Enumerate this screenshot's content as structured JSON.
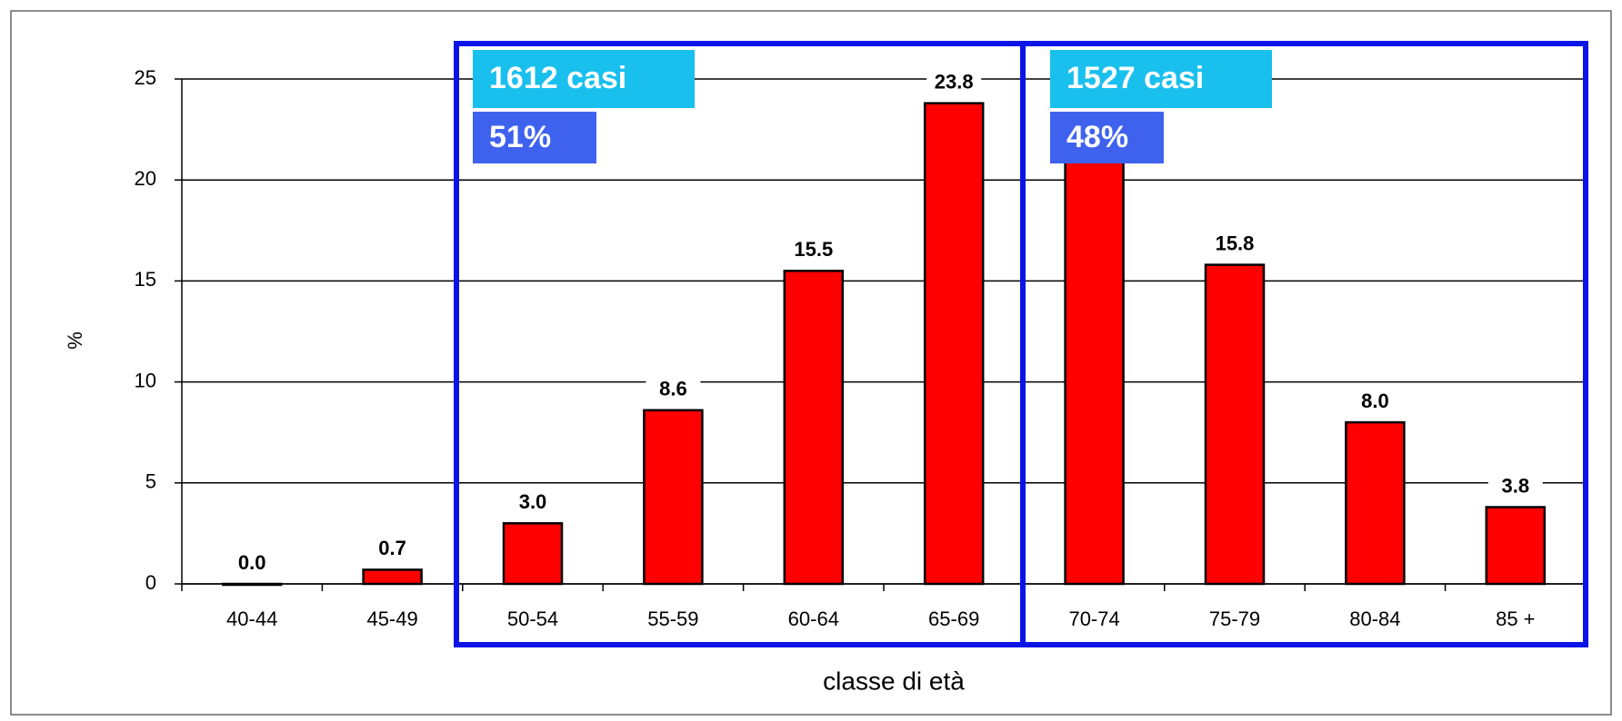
{
  "chart_data": {
    "type": "bar",
    "x_label": "classe di età",
    "y_label": "%",
    "categories": [
      "40-44",
      "45-49",
      "50-54",
      "55-59",
      "60-64",
      "65-69",
      "70-74",
      "75-79",
      "80-84",
      "85 +"
    ],
    "values": [
      0.0,
      0.7,
      3.0,
      8.6,
      15.5,
      23.8,
      20.9,
      15.8,
      8.0,
      3.8
    ],
    "value_labels": [
      "0.0",
      "0.7",
      "3.0",
      "8.6",
      "15.5",
      "23.8",
      "20.9",
      "15.8",
      "8.0",
      "3.8"
    ],
    "color": "#ff0000",
    "ylim": [
      0,
      25
    ],
    "yticks": [
      0,
      5,
      10,
      15,
      20,
      25
    ],
    "grid": true,
    "annotations": [
      {
        "cases": "1612 casi",
        "share": "51%"
      },
      {
        "cases": "1527 casi",
        "share": "48%"
      }
    ]
  }
}
